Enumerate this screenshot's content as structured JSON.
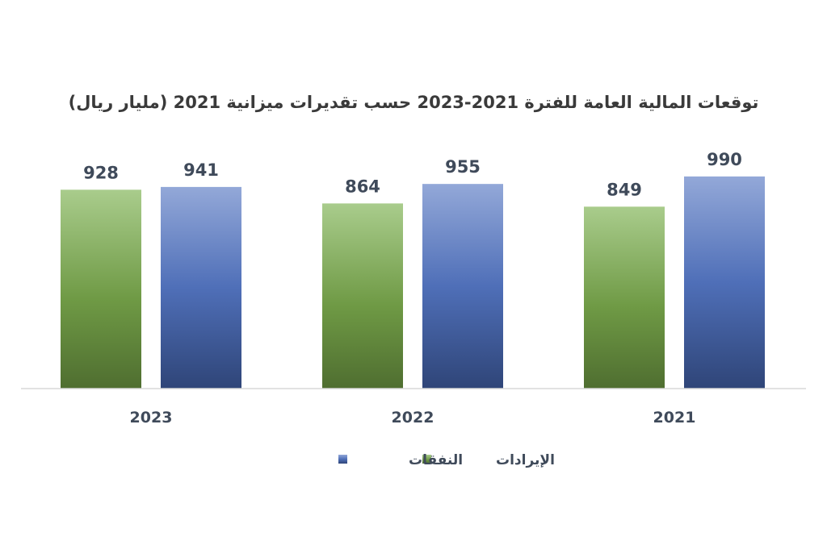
{
  "chart_data": {
    "type": "bar",
    "title": "توقعات المالية العامة للفترة 2021-2023 حسب تقديرات ميزانية 2021 (مليار ريال)",
    "categories": [
      "2023",
      "2022",
      "2021"
    ],
    "series": [
      {
        "name": "الإيرادات",
        "values": [
          928,
          864,
          849
        ],
        "color": "#6f9a45",
        "color_top": "#a9cc8c",
        "color_bottom": "#4f6e30"
      },
      {
        "name": "النفقات",
        "values": [
          941,
          955,
          990
        ],
        "color": "#4f6fb8",
        "color_top": "#93a8d8",
        "color_bottom": "#2f4578"
      }
    ],
    "ylim": [
      0,
      1100
    ],
    "grid": false,
    "legend_position": "bottom-center"
  }
}
